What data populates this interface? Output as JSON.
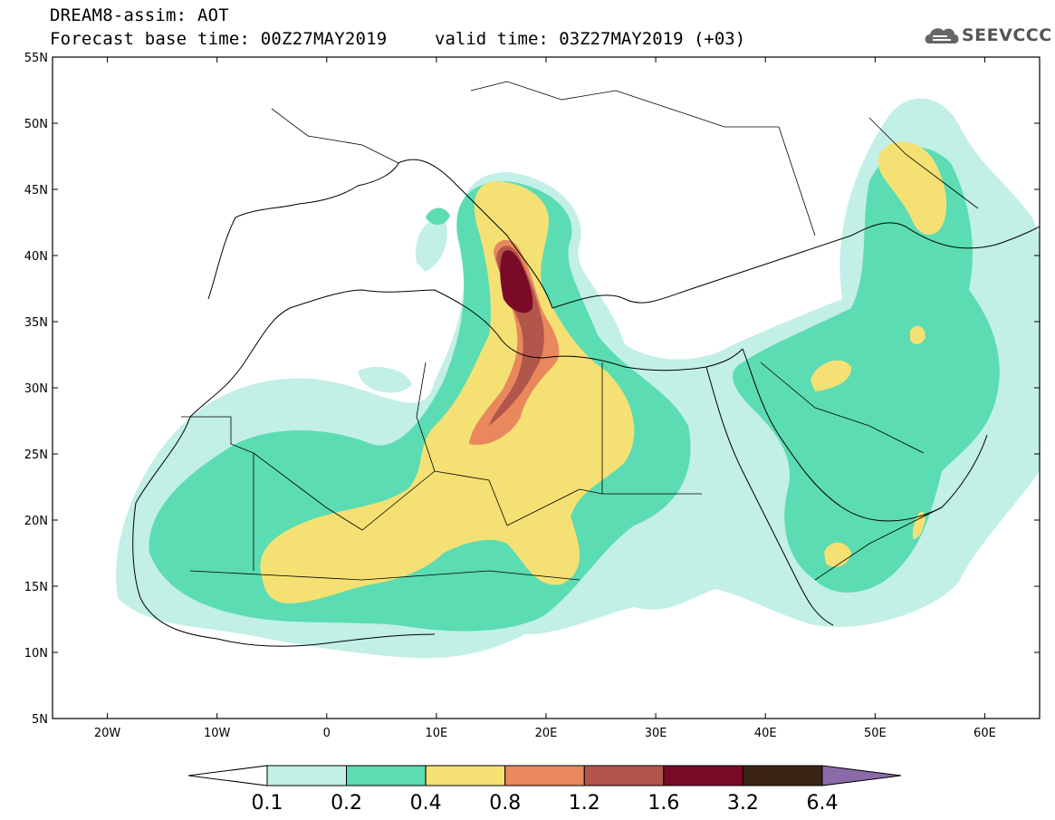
{
  "title": {
    "line1": "DREAM8-assim: AOT",
    "line2": "Forecast base time: 00Z27MAY2019",
    "valid": "valid time: 03Z27MAY2019 (+03)"
  },
  "logo": {
    "text": "SEEVCCC",
    "icon": "cloud-icon"
  },
  "map": {
    "lon_range": [
      -25,
      65
    ],
    "lat_range": [
      5,
      55
    ],
    "lat_ticks": [
      "55N",
      "50N",
      "45N",
      "40N",
      "35N",
      "30N",
      "25N",
      "20N",
      "15N",
      "10N",
      "5N"
    ],
    "lon_ticks": [
      "20W",
      "10W",
      "0",
      "10E",
      "20E",
      "30E",
      "40E",
      "50E",
      "60E"
    ],
    "lat_tick_values": [
      55,
      50,
      45,
      40,
      35,
      30,
      25,
      20,
      15,
      10,
      5
    ],
    "lon_tick_values": [
      -20,
      -10,
      0,
      10,
      20,
      30,
      40,
      50,
      60
    ]
  },
  "colorbar": {
    "labels": [
      "0.1",
      "0.2",
      "0.4",
      "0.8",
      "1.2",
      "1.6",
      "3.2",
      "6.4"
    ],
    "colors": [
      "#ffffff",
      "#c2efe6",
      "#5cdcb2",
      "#f5e173",
      "#e8885c",
      "#b2554a",
      "#7a0b28",
      "#3b2313",
      "#8a6aa8"
    ]
  },
  "colors": {
    "c1": "#c2efe6",
    "c2": "#5cdcb2",
    "c3": "#f5e173",
    "c4": "#e8885c",
    "c5": "#b2554a",
    "c6": "#7a0b28"
  }
}
